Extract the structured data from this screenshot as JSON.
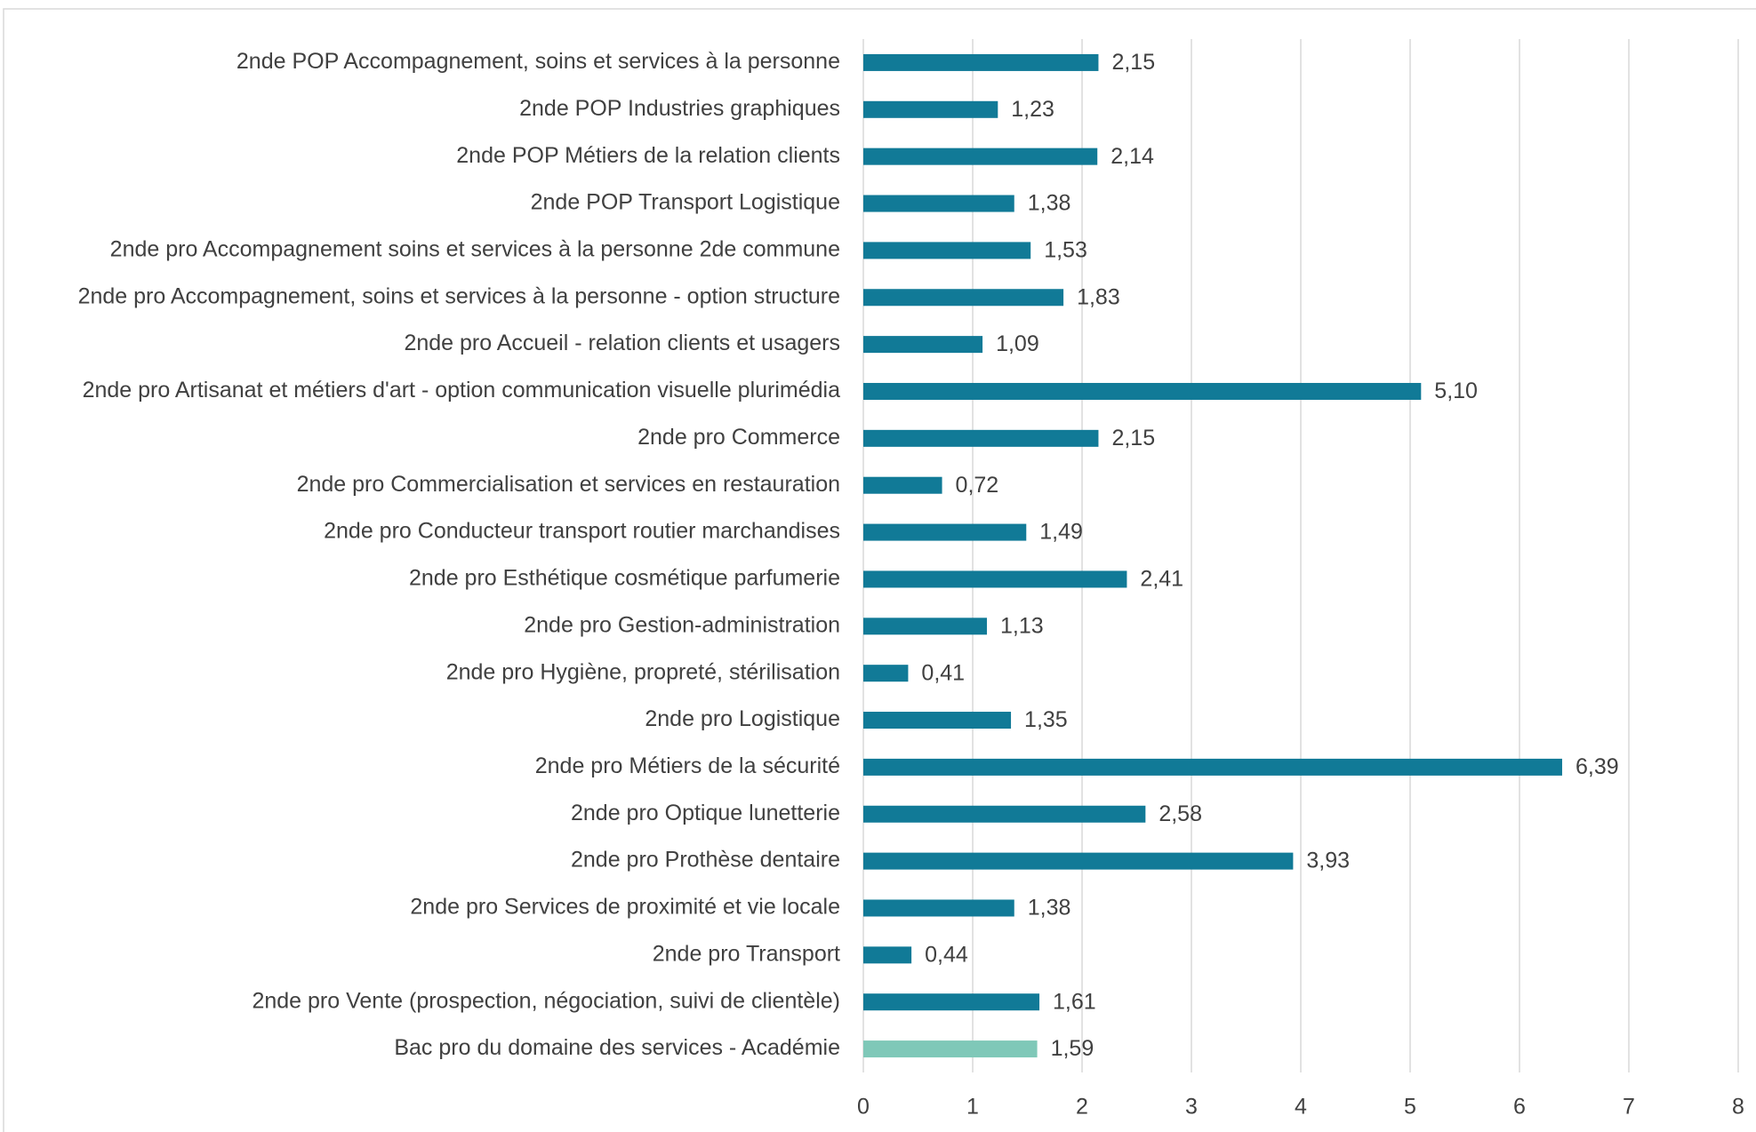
{
  "chart_data": {
    "type": "bar",
    "orientation": "horizontal",
    "categories": [
      "2nde POP Accompagnement, soins et services à la personne",
      "2nde POP Industries graphiques",
      "2nde POP Métiers de la relation clients",
      "2nde POP Transport Logistique",
      "2nde pro Accompagnement soins et services à la personne 2de commune",
      "2nde pro Accompagnement, soins et services à la personne - option structure",
      "2nde pro Accueil - relation clients et usagers",
      "2nde pro Artisanat et métiers d'art - option communication visuelle plurimédia",
      "2nde pro Commerce",
      "2nde pro Commercialisation et services en restauration",
      "2nde pro Conducteur transport routier marchandises",
      "2nde pro Esthétique cosmétique parfumerie",
      "2nde pro Gestion-administration",
      "2nde pro Hygiène, propreté, stérilisation",
      "2nde pro Logistique",
      "2nde pro Métiers de la sécurité",
      "2nde pro Optique lunetterie",
      "2nde pro Prothèse dentaire",
      "2nde pro Services de proximité et vie locale",
      "2nde pro Transport",
      "2nde pro Vente (prospection, négociation, suivi de clientèle)",
      "Bac pro du domaine des services - Académie"
    ],
    "values": [
      2.15,
      1.23,
      2.14,
      1.38,
      1.53,
      1.83,
      1.09,
      5.1,
      2.15,
      0.72,
      1.49,
      2.41,
      1.13,
      0.41,
      1.35,
      6.39,
      2.58,
      3.93,
      1.38,
      0.44,
      1.61,
      1.59
    ],
    "value_labels": [
      "2,15",
      "1,23",
      "2,14",
      "1,38",
      "1,53",
      "1,83",
      "1,09",
      "5,10",
      "2,15",
      "0,72",
      "1,49",
      "2,41",
      "1,13",
      "0,41",
      "1,35",
      "6,39",
      "2,58",
      "3,93",
      "1,38",
      "0,44",
      "1,61",
      "1,59"
    ],
    "colors": [
      "#117a97",
      "#117a97",
      "#117a97",
      "#117a97",
      "#117a97",
      "#117a97",
      "#117a97",
      "#117a97",
      "#117a97",
      "#117a97",
      "#117a97",
      "#117a97",
      "#117a97",
      "#117a97",
      "#117a97",
      "#117a97",
      "#117a97",
      "#117a97",
      "#117a97",
      "#117a97",
      "#117a97",
      "#7fc8b8"
    ],
    "xlim": [
      0,
      8
    ],
    "xticks": [
      0,
      1,
      2,
      3,
      4,
      5,
      6,
      7,
      8
    ],
    "grid": true
  }
}
